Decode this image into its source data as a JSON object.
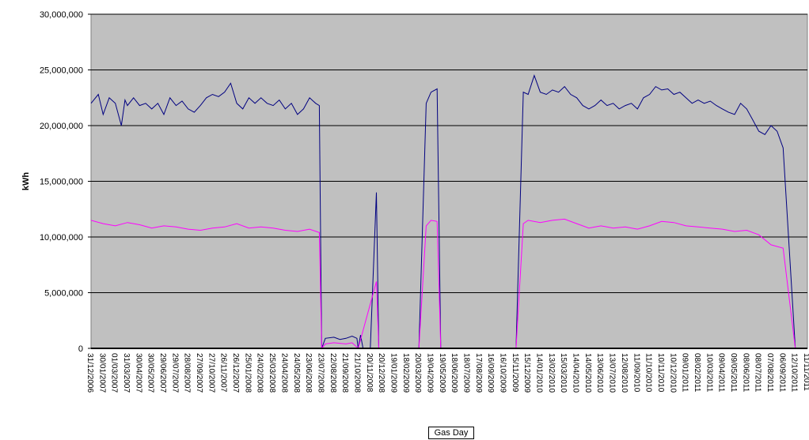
{
  "chart_data": {
    "type": "line",
    "title": "",
    "ylabel": "kWh",
    "xlabel": "Gas Day",
    "ylim": [
      0,
      30000000
    ],
    "yticks": [
      0,
      5000000,
      10000000,
      15000000,
      20000000,
      25000000,
      30000000
    ],
    "ytick_labels": [
      "0",
      "5,000,000",
      "10,000,000",
      "15,000,000",
      "20,000,000",
      "25,000,000",
      "30,000,000"
    ],
    "xtick_labels": [
      "31/12/2006",
      "30/01/2007",
      "01/03/2007",
      "31/03/2007",
      "30/04/2007",
      "30/05/2007",
      "29/06/2007",
      "29/07/2007",
      "28/08/2007",
      "27/09/2007",
      "27/10/2007",
      "26/11/2007",
      "26/12/2007",
      "25/01/2008",
      "24/02/2008",
      "25/03/2008",
      "24/04/2008",
      "24/05/2008",
      "23/06/2008",
      "23/07/2008",
      "22/08/2008",
      "21/09/2008",
      "21/10/2008",
      "20/11/2008",
      "20/12/2008",
      "19/01/2009",
      "18/02/2009",
      "20/03/2009",
      "19/04/2009",
      "19/05/2009",
      "18/06/2009",
      "18/07/2009",
      "17/08/2009",
      "16/09/2009",
      "16/10/2009",
      "15/11/2009",
      "15/12/2009",
      "14/01/2010",
      "13/02/2010",
      "15/03/2010",
      "14/04/2010",
      "14/05/2010",
      "13/06/2010",
      "13/07/2010",
      "12/08/2010",
      "11/09/2010",
      "11/10/2010",
      "10/11/2010",
      "10/12/2010",
      "09/01/2011",
      "08/02/2011",
      "10/03/2011",
      "09/04/2011",
      "09/05/2011",
      "08/06/2011",
      "08/07/2011",
      "07/08/2011",
      "06/09/2011",
      "12/10/2011",
      "11/11/2011"
    ],
    "grid": true,
    "plot_background": "#c0c0c0",
    "series": [
      {
        "color": "#000080",
        "values": [
          [
            0,
            22000000
          ],
          [
            0.6,
            22800000
          ],
          [
            1,
            21000000
          ],
          [
            1.5,
            22500000
          ],
          [
            2,
            22000000
          ],
          [
            2.5,
            20000000
          ],
          [
            2.8,
            22300000
          ],
          [
            3,
            21800000
          ],
          [
            3.5,
            22500000
          ],
          [
            4,
            21800000
          ],
          [
            4.5,
            22000000
          ],
          [
            5,
            21500000
          ],
          [
            5.5,
            22000000
          ],
          [
            6,
            21000000
          ],
          [
            6.5,
            22500000
          ],
          [
            7,
            21800000
          ],
          [
            7.5,
            22200000
          ],
          [
            8,
            21500000
          ],
          [
            8.5,
            21200000
          ],
          [
            9,
            21800000
          ],
          [
            9.5,
            22500000
          ],
          [
            10,
            22800000
          ],
          [
            10.5,
            22600000
          ],
          [
            11,
            23000000
          ],
          [
            11.5,
            23800000
          ],
          [
            12,
            22000000
          ],
          [
            12.5,
            21500000
          ],
          [
            13,
            22500000
          ],
          [
            13.5,
            22000000
          ],
          [
            14,
            22500000
          ],
          [
            14.5,
            22000000
          ],
          [
            15,
            21800000
          ],
          [
            15.5,
            22300000
          ],
          [
            16,
            21500000
          ],
          [
            16.5,
            22000000
          ],
          [
            17,
            21000000
          ],
          [
            17.5,
            21500000
          ],
          [
            18,
            22500000
          ],
          [
            18.5,
            22000000
          ],
          [
            18.8,
            21800000
          ],
          [
            19,
            0
          ],
          [
            19.3,
            900000
          ],
          [
            20,
            1000000
          ],
          [
            20.5,
            800000
          ],
          [
            21,
            900000
          ],
          [
            21.5,
            1100000
          ],
          [
            21.9,
            900000
          ],
          [
            22,
            0
          ],
          [
            22.2,
            1200000
          ],
          [
            22.4,
            0
          ],
          [
            23,
            0
          ],
          [
            23.5,
            14000000
          ],
          [
            23.7,
            0
          ],
          [
            24,
            0
          ],
          [
            27,
            0
          ],
          [
            27.6,
            22000000
          ],
          [
            28,
            23000000
          ],
          [
            28.5,
            23300000
          ],
          [
            28.8,
            0
          ],
          [
            29,
            0
          ],
          [
            31,
            0
          ],
          [
            31.6,
            0
          ],
          [
            32,
            0
          ],
          [
            35,
            0
          ],
          [
            35.6,
            23000000
          ],
          [
            36,
            22800000
          ],
          [
            36.5,
            24500000
          ],
          [
            37,
            23000000
          ],
          [
            37.5,
            22800000
          ],
          [
            38,
            23200000
          ],
          [
            38.5,
            23000000
          ],
          [
            39,
            23500000
          ],
          [
            39.5,
            22800000
          ],
          [
            40,
            22500000
          ],
          [
            40.5,
            21800000
          ],
          [
            41,
            21500000
          ],
          [
            41.5,
            21800000
          ],
          [
            42,
            22300000
          ],
          [
            42.5,
            21800000
          ],
          [
            43,
            22000000
          ],
          [
            43.5,
            21500000
          ],
          [
            44,
            21800000
          ],
          [
            44.5,
            22000000
          ],
          [
            45,
            21500000
          ],
          [
            45.5,
            22500000
          ],
          [
            46,
            22800000
          ],
          [
            46.5,
            23500000
          ],
          [
            47,
            23200000
          ],
          [
            47.5,
            23300000
          ],
          [
            48,
            22800000
          ],
          [
            48.5,
            23000000
          ],
          [
            49,
            22500000
          ],
          [
            49.5,
            22000000
          ],
          [
            50,
            22300000
          ],
          [
            50.5,
            22000000
          ],
          [
            51,
            22200000
          ],
          [
            51.5,
            21800000
          ],
          [
            52,
            21500000
          ],
          [
            52.5,
            21200000
          ],
          [
            53,
            21000000
          ],
          [
            53.5,
            22000000
          ],
          [
            54,
            21500000
          ],
          [
            54.5,
            20500000
          ],
          [
            55,
            19500000
          ],
          [
            55.5,
            19200000
          ],
          [
            56,
            20000000
          ],
          [
            56.5,
            19500000
          ],
          [
            57,
            18000000
          ],
          [
            58,
            0
          ]
        ]
      },
      {
        "color": "#ff00ff",
        "values": [
          [
            0,
            11500000
          ],
          [
            1,
            11200000
          ],
          [
            2,
            11000000
          ],
          [
            3,
            11300000
          ],
          [
            4,
            11100000
          ],
          [
            5,
            10800000
          ],
          [
            6,
            11000000
          ],
          [
            7,
            10900000
          ],
          [
            8,
            10700000
          ],
          [
            9,
            10600000
          ],
          [
            10,
            10800000
          ],
          [
            11,
            10900000
          ],
          [
            12,
            11200000
          ],
          [
            13,
            10800000
          ],
          [
            14,
            10900000
          ],
          [
            15,
            10800000
          ],
          [
            16,
            10600000
          ],
          [
            17,
            10500000
          ],
          [
            18,
            10700000
          ],
          [
            18.8,
            10400000
          ],
          [
            19,
            0
          ],
          [
            19.3,
            400000
          ],
          [
            20,
            500000
          ],
          [
            21,
            400000
          ],
          [
            21.5,
            500000
          ],
          [
            22,
            0
          ],
          [
            23.5,
            6000000
          ],
          [
            23.7,
            0
          ],
          [
            27,
            0
          ],
          [
            27.6,
            11000000
          ],
          [
            28,
            11500000
          ],
          [
            28.5,
            11400000
          ],
          [
            28.8,
            0
          ],
          [
            31,
            0
          ],
          [
            35,
            0
          ],
          [
            35.6,
            11200000
          ],
          [
            36,
            11500000
          ],
          [
            37,
            11300000
          ],
          [
            38,
            11500000
          ],
          [
            39,
            11600000
          ],
          [
            40,
            11200000
          ],
          [
            41,
            10800000
          ],
          [
            42,
            11000000
          ],
          [
            43,
            10800000
          ],
          [
            44,
            10900000
          ],
          [
            45,
            10700000
          ],
          [
            46,
            11000000
          ],
          [
            47,
            11400000
          ],
          [
            48,
            11300000
          ],
          [
            49,
            11000000
          ],
          [
            50,
            10900000
          ],
          [
            51,
            10800000
          ],
          [
            52,
            10700000
          ],
          [
            53,
            10500000
          ],
          [
            54,
            10600000
          ],
          [
            55,
            10200000
          ],
          [
            56,
            9300000
          ],
          [
            57,
            9000000
          ],
          [
            58,
            0
          ]
        ]
      }
    ]
  }
}
